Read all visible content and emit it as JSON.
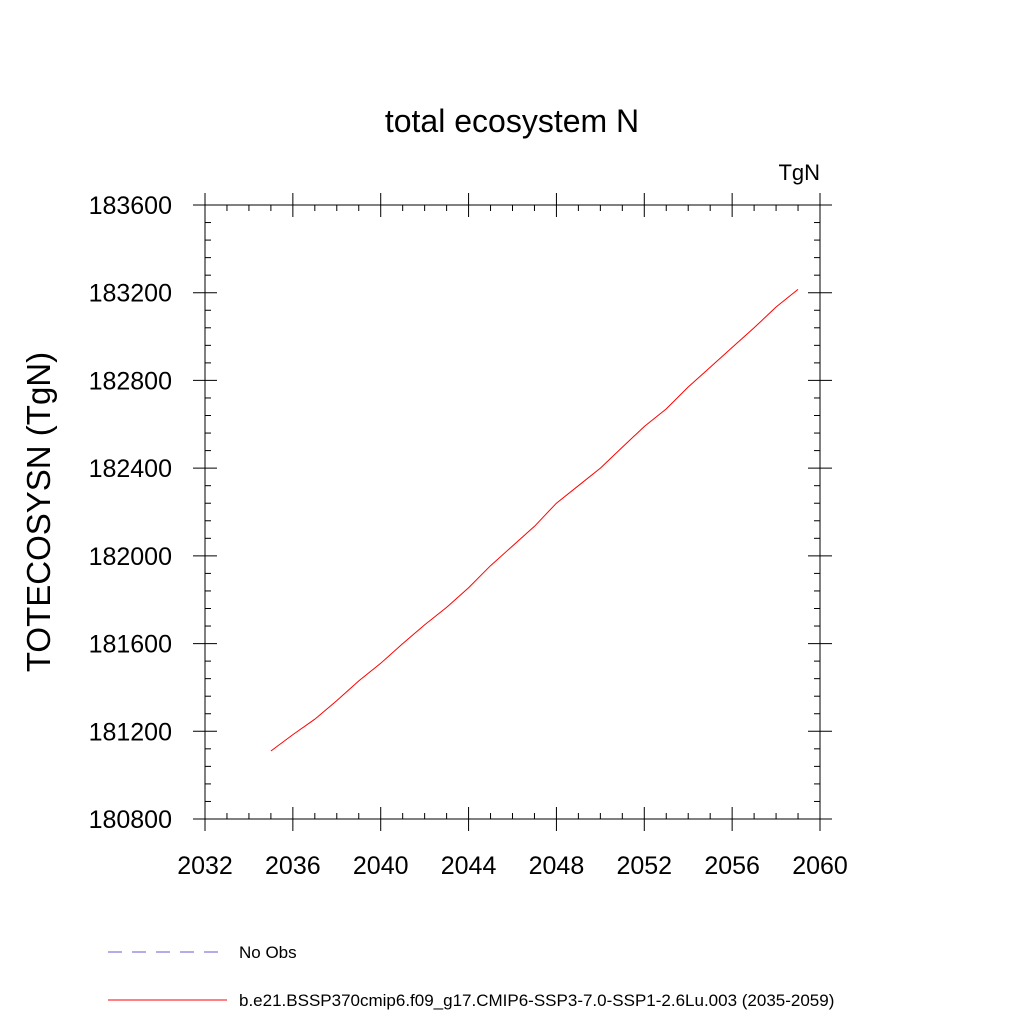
{
  "chart_data": {
    "type": "line",
    "title": "total ecosystem N",
    "units_label": "TgN",
    "xlabel": "",
    "ylabel": "TOTECOSYSN  (TgN)",
    "xlim": [
      2032,
      2060
    ],
    "ylim": [
      180800,
      183600
    ],
    "x_ticks": [
      2032,
      2036,
      2040,
      2044,
      2048,
      2052,
      2056,
      2060
    ],
    "y_ticks": [
      180800,
      181200,
      181600,
      182000,
      182400,
      182800,
      183200,
      183600
    ],
    "x_minor_step": 1,
    "y_minor_step": 80,
    "legend_position": "bottom",
    "series": [
      {
        "name": "No Obs",
        "color": "#6a5acd",
        "dash": "dashed",
        "x": [],
        "values": []
      },
      {
        "name": "b.e21.BSSP370cmip6.f09_g17.CMIP6-SSP3-7.0-SSP1-2.6Lu.003 (2035-2059)",
        "color": "#ff0000",
        "dash": "solid",
        "x": [
          2035,
          2036,
          2037,
          2038,
          2039,
          2040,
          2041,
          2042,
          2043,
          2044,
          2045,
          2046,
          2047,
          2048,
          2049,
          2050,
          2051,
          2052,
          2053,
          2054,
          2055,
          2056,
          2057,
          2058,
          2059
        ],
        "values": [
          181110,
          181185,
          181255,
          181340,
          181430,
          181510,
          181600,
          181685,
          181765,
          181855,
          181955,
          182045,
          182135,
          182240,
          182320,
          182400,
          182495,
          182590,
          182670,
          182770,
          182860,
          182950,
          183040,
          183135,
          183215
        ]
      }
    ]
  }
}
